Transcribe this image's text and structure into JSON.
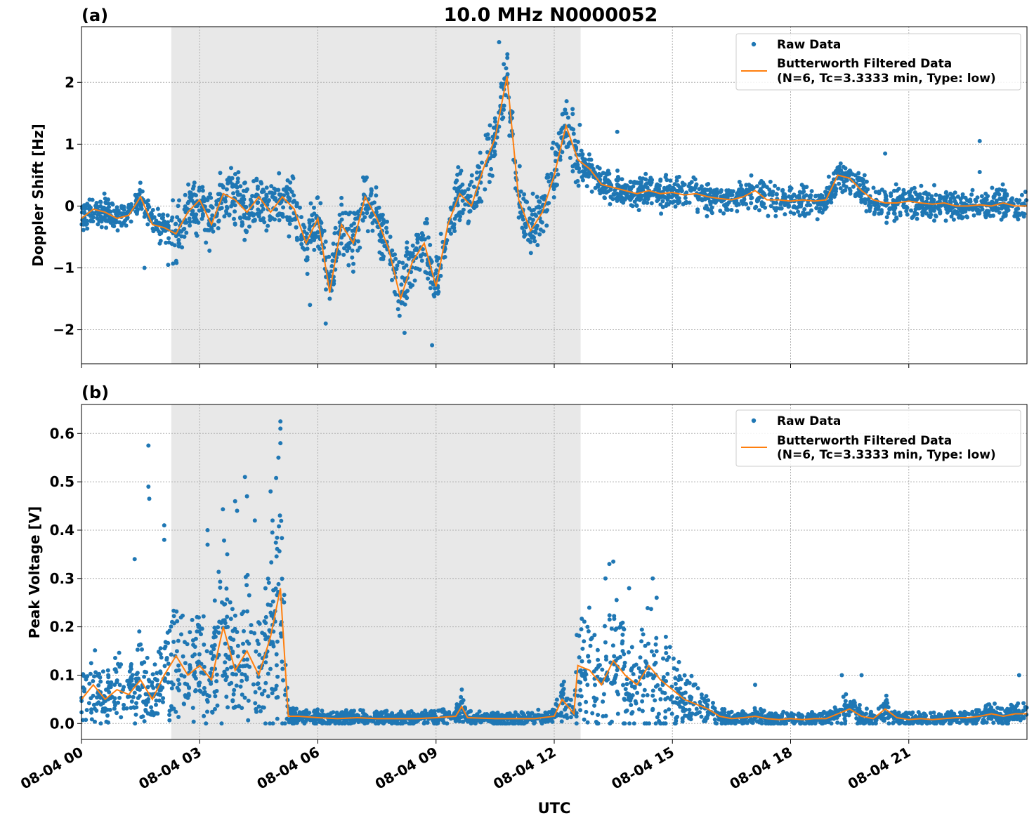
{
  "figure": {
    "title": "10.0 MHz N0000052",
    "xlabel": "UTC",
    "shade_color": "#e8e8e8",
    "raw_color": "#1f77b4",
    "filtered_color": "#ff7f0e"
  },
  "chart_data": [
    {
      "type": "scatter",
      "panel_label": "(a)",
      "ylabel": "Doppler Shift [Hz]",
      "xlim": [
        0,
        24
      ],
      "ylim": [
        -2.55,
        2.9
      ],
      "grid": true,
      "legend_position": "top-right",
      "x_ticks": [
        0,
        3,
        6,
        9,
        12,
        15,
        18,
        21
      ],
      "x_tick_labels": [
        "08-04 00",
        "08-04 03",
        "08-04 06",
        "08-04 09",
        "08-04 12",
        "08-04 15",
        "08-04 18",
        "08-04 21"
      ],
      "y_ticks": [
        -2,
        -1,
        0,
        1,
        2
      ],
      "y_tick_labels": [
        "−2",
        "−1",
        "0",
        "1",
        "2"
      ],
      "shaded_span": [
        2.28,
        12.67
      ],
      "legend": [
        "Raw Data",
        "Butterworth Filtered Data",
        "(N=6, Tc=3.3333 min, Type: low)"
      ],
      "series": [
        {
          "name": "Raw Data",
          "kind": "points",
          "spread": 0.45
        },
        {
          "name": "Butterworth Filtered Data",
          "kind": "line",
          "x": [
            0,
            0.3,
            0.6,
            0.9,
            1.2,
            1.5,
            1.8,
            2.1,
            2.4,
            2.7,
            3.0,
            3.3,
            3.6,
            3.9,
            4.2,
            4.5,
            4.8,
            5.1,
            5.4,
            5.7,
            6.0,
            6.3,
            6.6,
            6.9,
            7.2,
            7.5,
            7.8,
            8.1,
            8.4,
            8.7,
            9.0,
            9.3,
            9.6,
            9.9,
            10.2,
            10.5,
            10.8,
            11.1,
            11.4,
            11.7,
            12.0,
            12.3,
            12.6,
            12.9,
            13.2,
            13.5,
            13.8,
            14.1,
            14.4,
            14.7,
            15.0,
            15.3,
            15.6,
            15.9,
            16.2,
            16.5,
            16.8,
            17.1,
            17.4,
            17.7,
            18.0,
            18.3,
            18.6,
            18.9,
            19.2,
            19.5,
            19.8,
            20.1,
            20.4,
            20.7,
            21.0,
            21.3,
            21.6,
            21.9,
            22.2,
            22.5,
            22.8,
            23.1,
            23.4,
            23.7,
            24.0
          ],
          "y": [
            -0.2,
            -0.05,
            -0.1,
            -0.2,
            -0.15,
            0.15,
            -0.3,
            -0.35,
            -0.45,
            -0.1,
            0.1,
            -0.3,
            0.2,
            0.1,
            -0.1,
            0.15,
            -0.1,
            0.15,
            -0.05,
            -0.6,
            -0.2,
            -1.4,
            -0.3,
            -0.6,
            0.15,
            -0.2,
            -0.7,
            -1.5,
            -0.9,
            -0.6,
            -1.3,
            -0.3,
            0.2,
            0.0,
            0.6,
            1.1,
            2.1,
            0.1,
            -0.4,
            -0.1,
            0.5,
            1.3,
            0.75,
            0.6,
            0.35,
            0.3,
            0.25,
            0.2,
            0.25,
            0.2,
            0.22,
            0.18,
            0.2,
            0.15,
            0.12,
            0.1,
            0.15,
            0.25,
            0.1,
            0.1,
            0.08,
            0.1,
            0.08,
            0.1,
            0.5,
            0.45,
            0.25,
            0.1,
            0.05,
            0.05,
            0.08,
            0.05,
            0.03,
            0.05,
            0.0,
            0.0,
            0.02,
            0.0,
            0.05,
            0.0,
            0.0
          ]
        },
        {
          "name": "Raw Data outliers",
          "kind": "scatter",
          "x": [
            1.6,
            2.2,
            10.6,
            8.9,
            8.2,
            6.2,
            5.8,
            13.6,
            20.4,
            22.8,
            22.8
          ],
          "y": [
            -1.0,
            -0.95,
            2.65,
            -2.25,
            -2.05,
            -1.9,
            -1.6,
            1.2,
            0.85,
            1.05,
            0.55
          ]
        }
      ]
    },
    {
      "type": "scatter",
      "panel_label": "(b)",
      "ylabel": "Peak Voltage [V]",
      "xlim": [
        0,
        24
      ],
      "ylim": [
        -0.033,
        0.66
      ],
      "grid": true,
      "legend_position": "top-right",
      "x_ticks": [
        0,
        3,
        6,
        9,
        12,
        15,
        18,
        21
      ],
      "x_tick_labels": [
        "08-04 00",
        "08-04 03",
        "08-04 06",
        "08-04 09",
        "08-04 12",
        "08-04 15",
        "08-04 18",
        "08-04 21"
      ],
      "y_ticks": [
        0.0,
        0.1,
        0.2,
        0.3,
        0.4,
        0.5,
        0.6
      ],
      "y_tick_labels": [
        "0.0",
        "0.1",
        "0.2",
        "0.3",
        "0.4",
        "0.5",
        "0.6"
      ],
      "shaded_span": [
        2.28,
        12.67
      ],
      "legend": [
        "Raw Data",
        "Butterworth Filtered Data",
        "(N=6, Tc=3.3333 min, Type: low)"
      ],
      "series": [
        {
          "name": "Raw Data",
          "kind": "points"
        },
        {
          "name": "Butterworth Filtered Data",
          "kind": "line",
          "x": [
            0,
            0.3,
            0.6,
            0.9,
            1.2,
            1.5,
            1.8,
            2.1,
            2.4,
            2.7,
            3.0,
            3.3,
            3.6,
            3.9,
            4.2,
            4.5,
            4.8,
            5.05,
            5.25,
            5.5,
            6.0,
            6.5,
            7.0,
            7.5,
            8.0,
            8.5,
            9.0,
            9.5,
            9.65,
            9.8,
            10.5,
            11.0,
            11.5,
            12.0,
            12.2,
            12.4,
            12.5,
            12.6,
            12.9,
            13.2,
            13.5,
            13.8,
            14.1,
            14.4,
            14.7,
            15.0,
            15.3,
            15.6,
            15.9,
            16.2,
            16.5,
            16.8,
            17.1,
            17.4,
            17.7,
            18.0,
            18.3,
            18.6,
            18.9,
            19.2,
            19.5,
            19.8,
            20.1,
            20.4,
            20.7,
            21.0,
            21.3,
            21.6,
            21.9,
            22.2,
            22.5,
            22.8,
            23.1,
            23.4,
            23.7,
            24.0
          ],
          "y": [
            0.05,
            0.08,
            0.05,
            0.07,
            0.06,
            0.09,
            0.05,
            0.1,
            0.14,
            0.1,
            0.12,
            0.09,
            0.2,
            0.11,
            0.15,
            0.1,
            0.18,
            0.28,
            0.015,
            0.015,
            0.012,
            0.01,
            0.012,
            0.01,
            0.01,
            0.01,
            0.012,
            0.015,
            0.035,
            0.012,
            0.01,
            0.01,
            0.01,
            0.015,
            0.05,
            0.03,
            0.02,
            0.12,
            0.11,
            0.08,
            0.13,
            0.1,
            0.08,
            0.12,
            0.09,
            0.07,
            0.05,
            0.04,
            0.03,
            0.015,
            0.01,
            0.012,
            0.015,
            0.01,
            0.008,
            0.01,
            0.008,
            0.01,
            0.01,
            0.02,
            0.03,
            0.015,
            0.01,
            0.03,
            0.012,
            0.008,
            0.01,
            0.008,
            0.01,
            0.012,
            0.012,
            0.015,
            0.02,
            0.015,
            0.02,
            0.02
          ]
        },
        {
          "name": "Raw Data outliers",
          "kind": "scatter",
          "x": [
            1.35,
            1.7,
            1.7,
            1.72,
            2.1,
            2.1,
            3.2,
            3.2,
            3.7,
            3.9,
            3.95,
            4.15,
            4.2,
            4.4,
            4.8,
            4.85,
            5.05,
            5.05,
            5.05,
            5.0,
            13.4,
            13.3,
            13.5,
            13.9,
            14.5,
            14.6,
            17.1,
            19.3,
            19.8,
            23.8
          ],
          "y": [
            0.34,
            0.575,
            0.49,
            0.465,
            0.41,
            0.38,
            0.4,
            0.37,
            0.35,
            0.46,
            0.44,
            0.51,
            0.47,
            0.42,
            0.48,
            0.42,
            0.625,
            0.61,
            0.58,
            0.55,
            0.33,
            0.3,
            0.335,
            0.28,
            0.3,
            0.26,
            0.08,
            0.1,
            0.1,
            0.1
          ]
        }
      ]
    }
  ]
}
